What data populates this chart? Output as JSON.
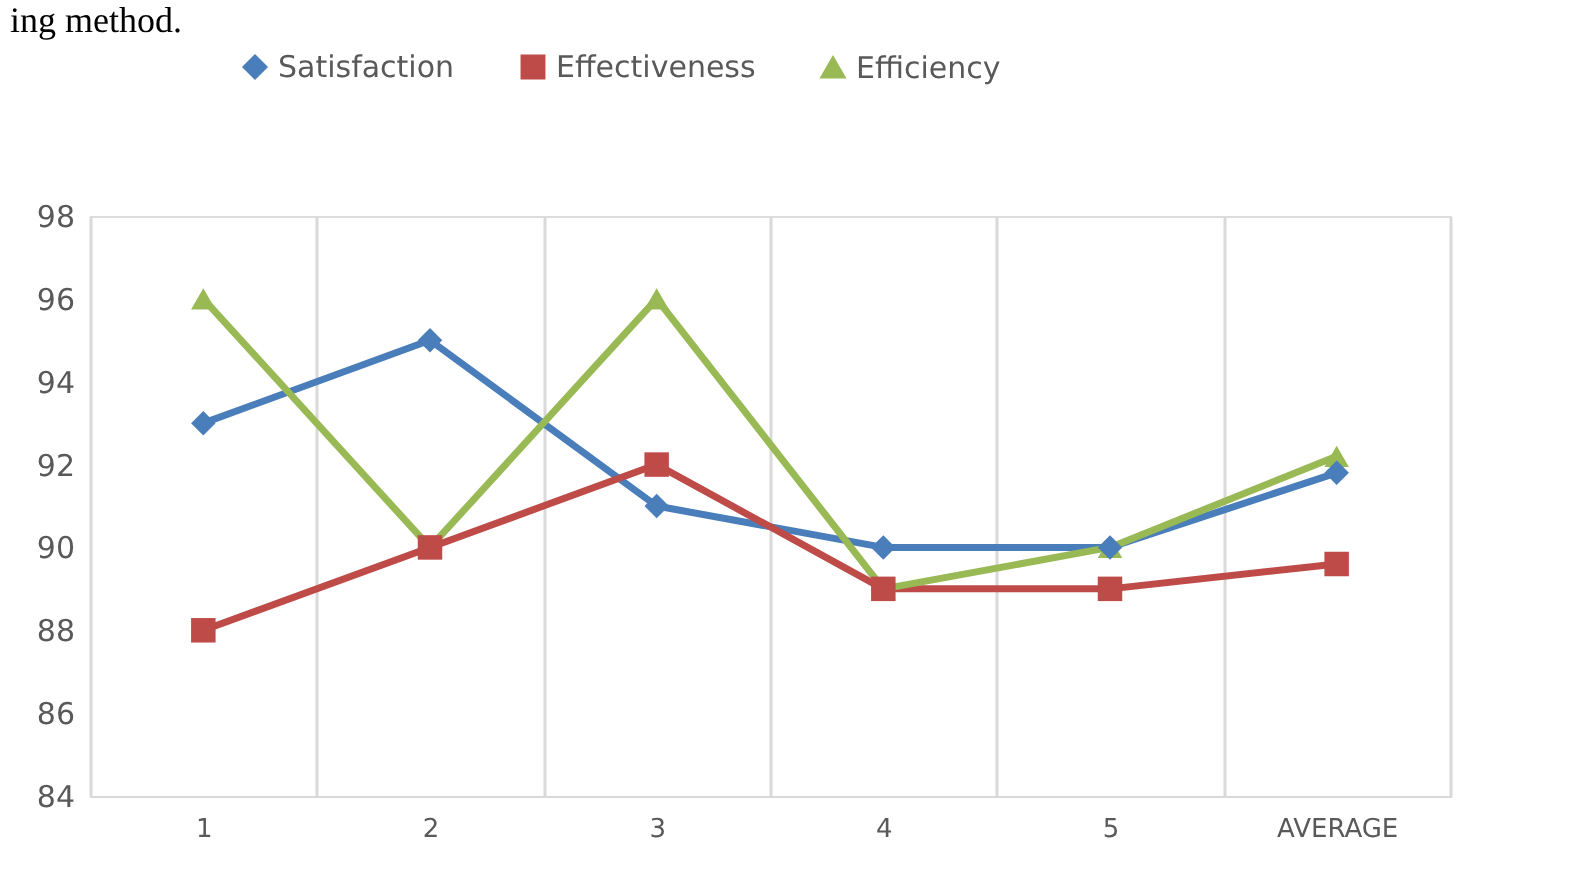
{
  "chart_data": {
    "type": "line",
    "categories": [
      "1",
      "2",
      "3",
      "4",
      "5",
      "AVERAGE"
    ],
    "series": [
      {
        "name": "Satisfaction",
        "color": "#4a7ebb",
        "marker": "diamond",
        "values": [
          93,
          95,
          91,
          90,
          90,
          91.8
        ]
      },
      {
        "name": "Effectiveness",
        "color": "#be4b48",
        "marker": "square",
        "values": [
          88,
          90,
          92,
          89,
          89,
          89.6
        ]
      },
      {
        "name": "Efficiency",
        "color": "#98b954",
        "marker": "triangle",
        "values": [
          96,
          90,
          96,
          89,
          90,
          92.2
        ]
      }
    ],
    "ylim": [
      84,
      98
    ],
    "yticks": [
      84,
      86,
      88,
      90,
      92,
      94,
      96,
      98
    ],
    "grid": "x",
    "legend": "top",
    "line_style": "solid",
    "annotations": [
      "ing method."
    ]
  }
}
